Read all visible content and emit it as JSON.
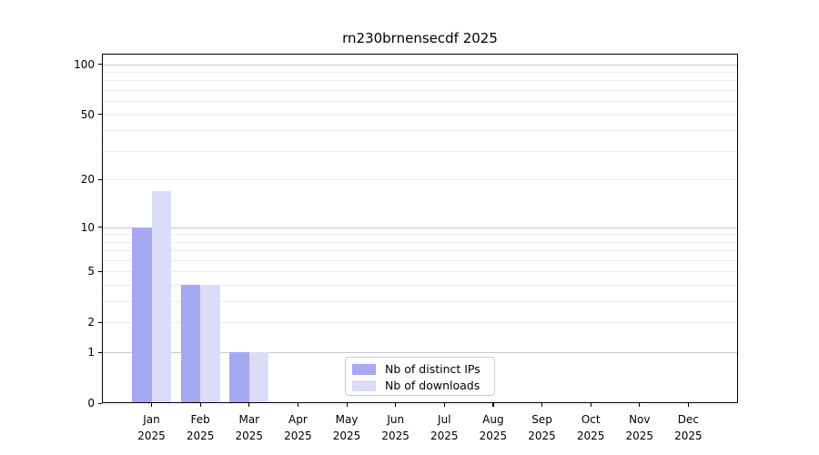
{
  "chart_data": {
    "type": "bar",
    "title": "rn230brnensecdf 2025",
    "categories": [
      "Jan",
      "Feb",
      "Mar",
      "Apr",
      "May",
      "Jun",
      "Jul",
      "Aug",
      "Sep",
      "Oct",
      "Nov",
      "Dec"
    ],
    "category_year": "2025",
    "series": [
      {
        "name": "Nb of distinct IPs",
        "color": "#a6a8f0",
        "values": [
          10,
          4,
          1,
          0,
          0,
          0,
          0,
          0,
          0,
          0,
          0,
          0
        ]
      },
      {
        "name": "Nb of downloads",
        "color": "#dbddf8",
        "values": [
          17,
          4,
          1,
          0,
          0,
          0,
          0,
          0,
          0,
          0,
          0,
          0
        ]
      }
    ],
    "xlabel": "",
    "ylabel": "",
    "y_scale": "log10(value+1)",
    "y_ticks": [
      0,
      1,
      2,
      5,
      10,
      20,
      50,
      100
    ],
    "y_major_gridlines": [
      1,
      10,
      100
    ],
    "y_minor_gridlines": [
      2,
      3,
      4,
      5,
      6,
      7,
      8,
      9,
      20,
      30,
      40,
      50,
      60,
      70,
      80,
      90
    ],
    "ylim": [
      0,
      116
    ],
    "grid": true,
    "legend_position": "lower center"
  },
  "colors": {
    "background": "#ffffff",
    "grid_major": "#c8c8c8",
    "grid_minor": "#ececec",
    "spine": "#000000",
    "text": "#000000",
    "legend_border": "#cccccc"
  }
}
